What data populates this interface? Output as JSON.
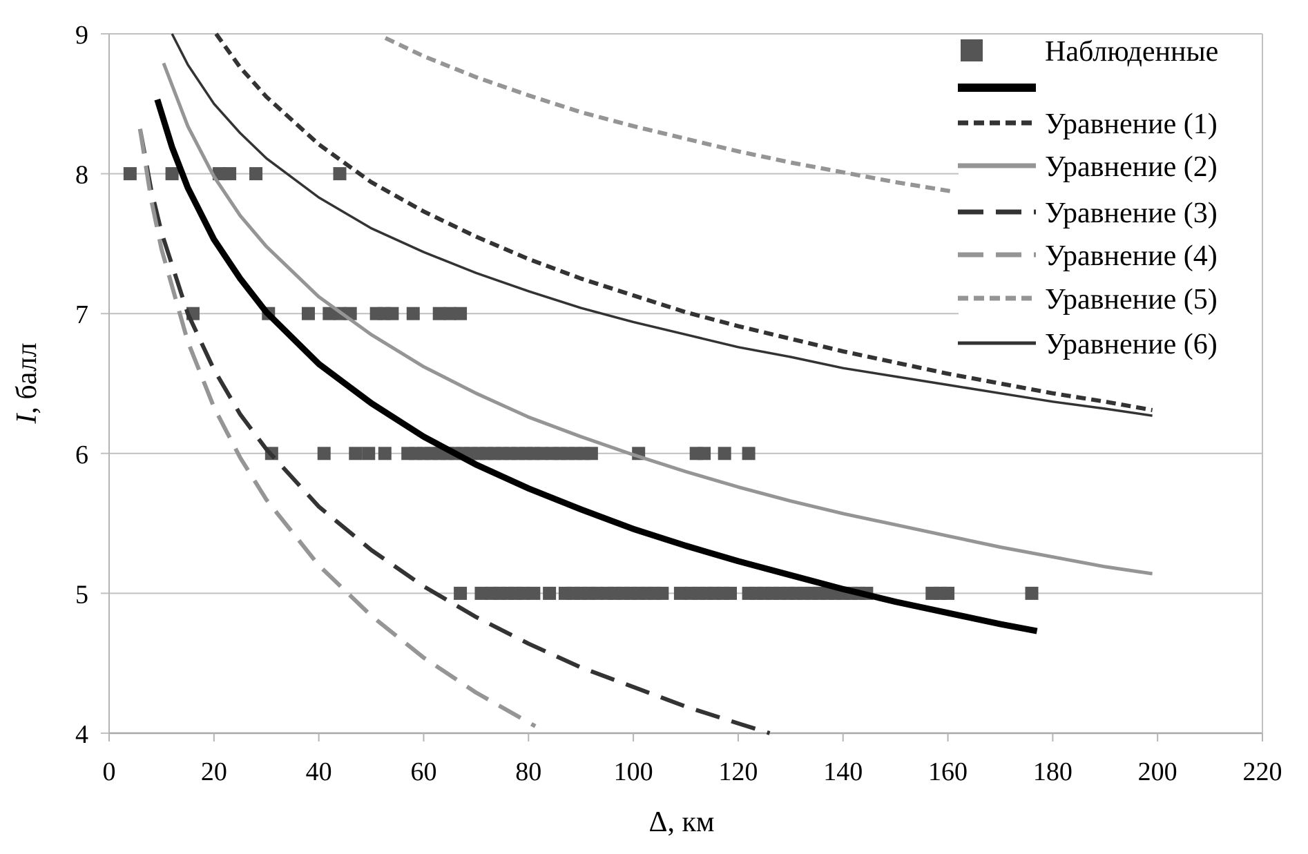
{
  "chart_data": {
    "type": "scatter",
    "title": "",
    "xlabel": "Δ, км",
    "ylabel_italic": "I",
    "ylabel_rest": ", балл",
    "ylabel": "I, балл",
    "xlim": [
      0,
      220
    ],
    "ylim": [
      4,
      9
    ],
    "x_ticks": [
      0,
      20,
      40,
      60,
      80,
      100,
      120,
      140,
      160,
      180,
      200,
      220
    ],
    "y_ticks": [
      4,
      5,
      6,
      7,
      8,
      9
    ],
    "grid": "horizontal",
    "legend_position": "top-right",
    "observed": {
      "name": "Наблюденные",
      "color": "#555555",
      "points": [
        [
          4,
          8
        ],
        [
          12,
          8
        ],
        [
          21,
          8
        ],
        [
          23,
          8
        ],
        [
          28,
          8
        ],
        [
          44,
          8
        ],
        [
          16,
          7
        ],
        [
          30.4,
          7
        ],
        [
          38,
          7
        ],
        [
          42,
          7
        ],
        [
          44,
          7
        ],
        [
          46,
          7
        ],
        [
          51,
          7
        ],
        [
          52.5,
          7
        ],
        [
          54,
          7
        ],
        [
          58,
          7
        ],
        [
          63,
          7
        ],
        [
          65,
          7
        ],
        [
          67,
          7
        ],
        [
          31,
          6
        ],
        [
          41,
          6
        ],
        [
          47,
          6
        ],
        [
          49.5,
          6
        ],
        [
          52.6,
          6
        ],
        [
          57,
          6
        ],
        [
          58.5,
          6
        ],
        [
          60,
          6
        ],
        [
          61.5,
          6
        ],
        [
          63,
          6
        ],
        [
          64.5,
          6
        ],
        [
          66,
          6
        ],
        [
          67.5,
          6
        ],
        [
          69,
          6
        ],
        [
          70.5,
          6
        ],
        [
          72,
          6
        ],
        [
          73.5,
          6
        ],
        [
          75,
          6
        ],
        [
          76.5,
          6
        ],
        [
          78,
          6
        ],
        [
          79.5,
          6
        ],
        [
          81,
          6
        ],
        [
          82.5,
          6
        ],
        [
          84.5,
          6
        ],
        [
          86,
          6
        ],
        [
          87.5,
          6
        ],
        [
          89,
          6
        ],
        [
          90.5,
          6
        ],
        [
          92,
          6
        ],
        [
          101,
          6
        ],
        [
          112,
          6
        ],
        [
          113.5,
          6
        ],
        [
          117.4,
          6
        ],
        [
          122,
          6
        ],
        [
          67,
          5
        ],
        [
          71,
          5
        ],
        [
          73,
          5
        ],
        [
          74.5,
          5
        ],
        [
          76,
          5
        ],
        [
          77.5,
          5
        ],
        [
          79,
          5
        ],
        [
          81,
          5
        ],
        [
          84,
          5
        ],
        [
          87,
          5
        ],
        [
          88.5,
          5
        ],
        [
          90,
          5
        ],
        [
          91.5,
          5
        ],
        [
          93,
          5
        ],
        [
          95,
          5
        ],
        [
          96.5,
          5
        ],
        [
          98,
          5
        ],
        [
          99.5,
          5
        ],
        [
          101,
          5
        ],
        [
          102.5,
          5
        ],
        [
          104,
          5
        ],
        [
          105.5,
          5
        ],
        [
          109,
          5
        ],
        [
          111,
          5
        ],
        [
          112.5,
          5
        ],
        [
          114,
          5
        ],
        [
          115.5,
          5
        ],
        [
          117,
          5
        ],
        [
          118.5,
          5
        ],
        [
          122,
          5
        ],
        [
          123.5,
          5
        ],
        [
          125,
          5
        ],
        [
          126.5,
          5
        ],
        [
          128,
          5
        ],
        [
          129.5,
          5
        ],
        [
          131,
          5
        ],
        [
          132.5,
          5
        ],
        [
          134,
          5
        ],
        [
          135.5,
          5
        ],
        [
          137,
          5
        ],
        [
          138.5,
          5
        ],
        [
          140,
          5
        ],
        [
          141.5,
          5
        ],
        [
          143,
          5
        ],
        [
          144.5,
          5
        ],
        [
          157,
          5
        ],
        [
          158.5,
          5
        ],
        [
          160,
          5
        ],
        [
          176,
          5
        ]
      ]
    },
    "series": [
      {
        "name": "",
        "color": "#000000",
        "style": "solid-thick",
        "x": [
          9.2,
          12,
          15,
          20,
          25,
          30,
          40,
          50,
          60,
          70,
          80,
          90,
          100,
          110,
          120,
          130,
          140,
          150,
          160,
          170,
          177
        ],
        "y": [
          8.53,
          8.19,
          7.9,
          7.53,
          7.25,
          7.01,
          6.64,
          6.36,
          6.12,
          5.92,
          5.75,
          5.6,
          5.46,
          5.34,
          5.23,
          5.13,
          5.03,
          4.94,
          4.86,
          4.78,
          4.73
        ]
      },
      {
        "name": "Уравнение (1)",
        "color": "#333333",
        "style": "short-dash",
        "x": [
          20.4,
          25,
          30,
          40,
          50,
          60,
          70,
          80,
          90,
          100,
          110,
          120,
          130,
          140,
          150,
          160,
          170,
          180,
          190,
          199
        ],
        "y": [
          9.0,
          8.76,
          8.55,
          8.21,
          7.94,
          7.73,
          7.55,
          7.39,
          7.25,
          7.13,
          7.01,
          6.91,
          6.82,
          6.73,
          6.65,
          6.57,
          6.5,
          6.43,
          6.37,
          6.31
        ]
      },
      {
        "name": "Уравнение (2)",
        "color": "#959595",
        "style": "solid",
        "x": [
          10.4,
          15,
          20,
          25,
          30,
          40,
          50,
          60,
          70,
          80,
          90,
          100,
          110,
          120,
          130,
          140,
          150,
          160,
          170,
          180,
          190,
          199
        ],
        "y": [
          8.79,
          8.34,
          7.98,
          7.7,
          7.48,
          7.12,
          6.85,
          6.62,
          6.43,
          6.26,
          6.12,
          5.99,
          5.87,
          5.76,
          5.66,
          5.57,
          5.49,
          5.41,
          5.33,
          5.26,
          5.19,
          5.14
        ]
      },
      {
        "name": "Уравнение (3)",
        "color": "#333333",
        "style": "long-dash",
        "x": [
          5.9,
          8,
          10,
          15,
          20,
          25,
          30,
          40,
          50,
          60,
          70,
          80,
          90,
          100,
          110,
          120,
          126
        ],
        "y": [
          8.32,
          7.89,
          7.58,
          7.0,
          6.6,
          6.28,
          6.03,
          5.62,
          5.31,
          5.05,
          4.83,
          4.64,
          4.47,
          4.33,
          4.19,
          4.07,
          4.0
        ]
      },
      {
        "name": "Уравнение (4)",
        "color": "#959595",
        "style": "long-dash",
        "x": [
          5.9,
          8,
          10,
          15,
          20,
          25,
          30,
          40,
          50,
          60,
          70,
          81.3
        ],
        "y": [
          8.32,
          7.82,
          7.46,
          6.8,
          6.33,
          5.97,
          5.67,
          5.2,
          4.84,
          4.54,
          4.29,
          4.05
        ]
      },
      {
        "name": "Уравнение (5)",
        "color": "#959595",
        "style": "short-dash",
        "x": [
          52.7,
          60,
          70,
          80,
          90,
          100,
          110,
          120,
          130,
          140,
          150,
          161.3
        ],
        "y": [
          8.97,
          8.84,
          8.69,
          8.56,
          8.44,
          8.34,
          8.25,
          8.16,
          8.08,
          8.01,
          7.94,
          7.87
        ]
      },
      {
        "name": "Уравнение (6)",
        "color": "#333333",
        "style": "solid-thin",
        "x": [
          12,
          15,
          20,
          25,
          30,
          40,
          50,
          60,
          70,
          80,
          90,
          100,
          110,
          120,
          130,
          140,
          150,
          160,
          170,
          180,
          190,
          199
        ],
        "y": [
          9.0,
          8.78,
          8.5,
          8.29,
          8.11,
          7.83,
          7.61,
          7.44,
          7.29,
          7.16,
          7.04,
          6.94,
          6.85,
          6.76,
          6.69,
          6.61,
          6.55,
          6.49,
          6.43,
          6.37,
          6.32,
          6.27
        ]
      }
    ],
    "legend": [
      {
        "label": "Наблюденные",
        "kind": "marker",
        "color": "#555555"
      },
      {
        "label": "",
        "kind": "line",
        "style": "solid-thick",
        "color": "#000000"
      },
      {
        "label": "Уравнение (1)",
        "kind": "line",
        "style": "short-dash",
        "color": "#333333"
      },
      {
        "label": "Уравнение (2)",
        "kind": "line",
        "style": "solid",
        "color": "#959595"
      },
      {
        "label": "Уравнение (3)",
        "kind": "line",
        "style": "long-dash",
        "color": "#333333"
      },
      {
        "label": "Уравнение (4)",
        "kind": "line",
        "style": "long-dash",
        "color": "#959595"
      },
      {
        "label": "Уравнение (5)",
        "kind": "line",
        "style": "short-dash",
        "color": "#959595"
      },
      {
        "label": "Уравнение (6)",
        "kind": "line",
        "style": "solid-thin",
        "color": "#333333"
      }
    ]
  }
}
